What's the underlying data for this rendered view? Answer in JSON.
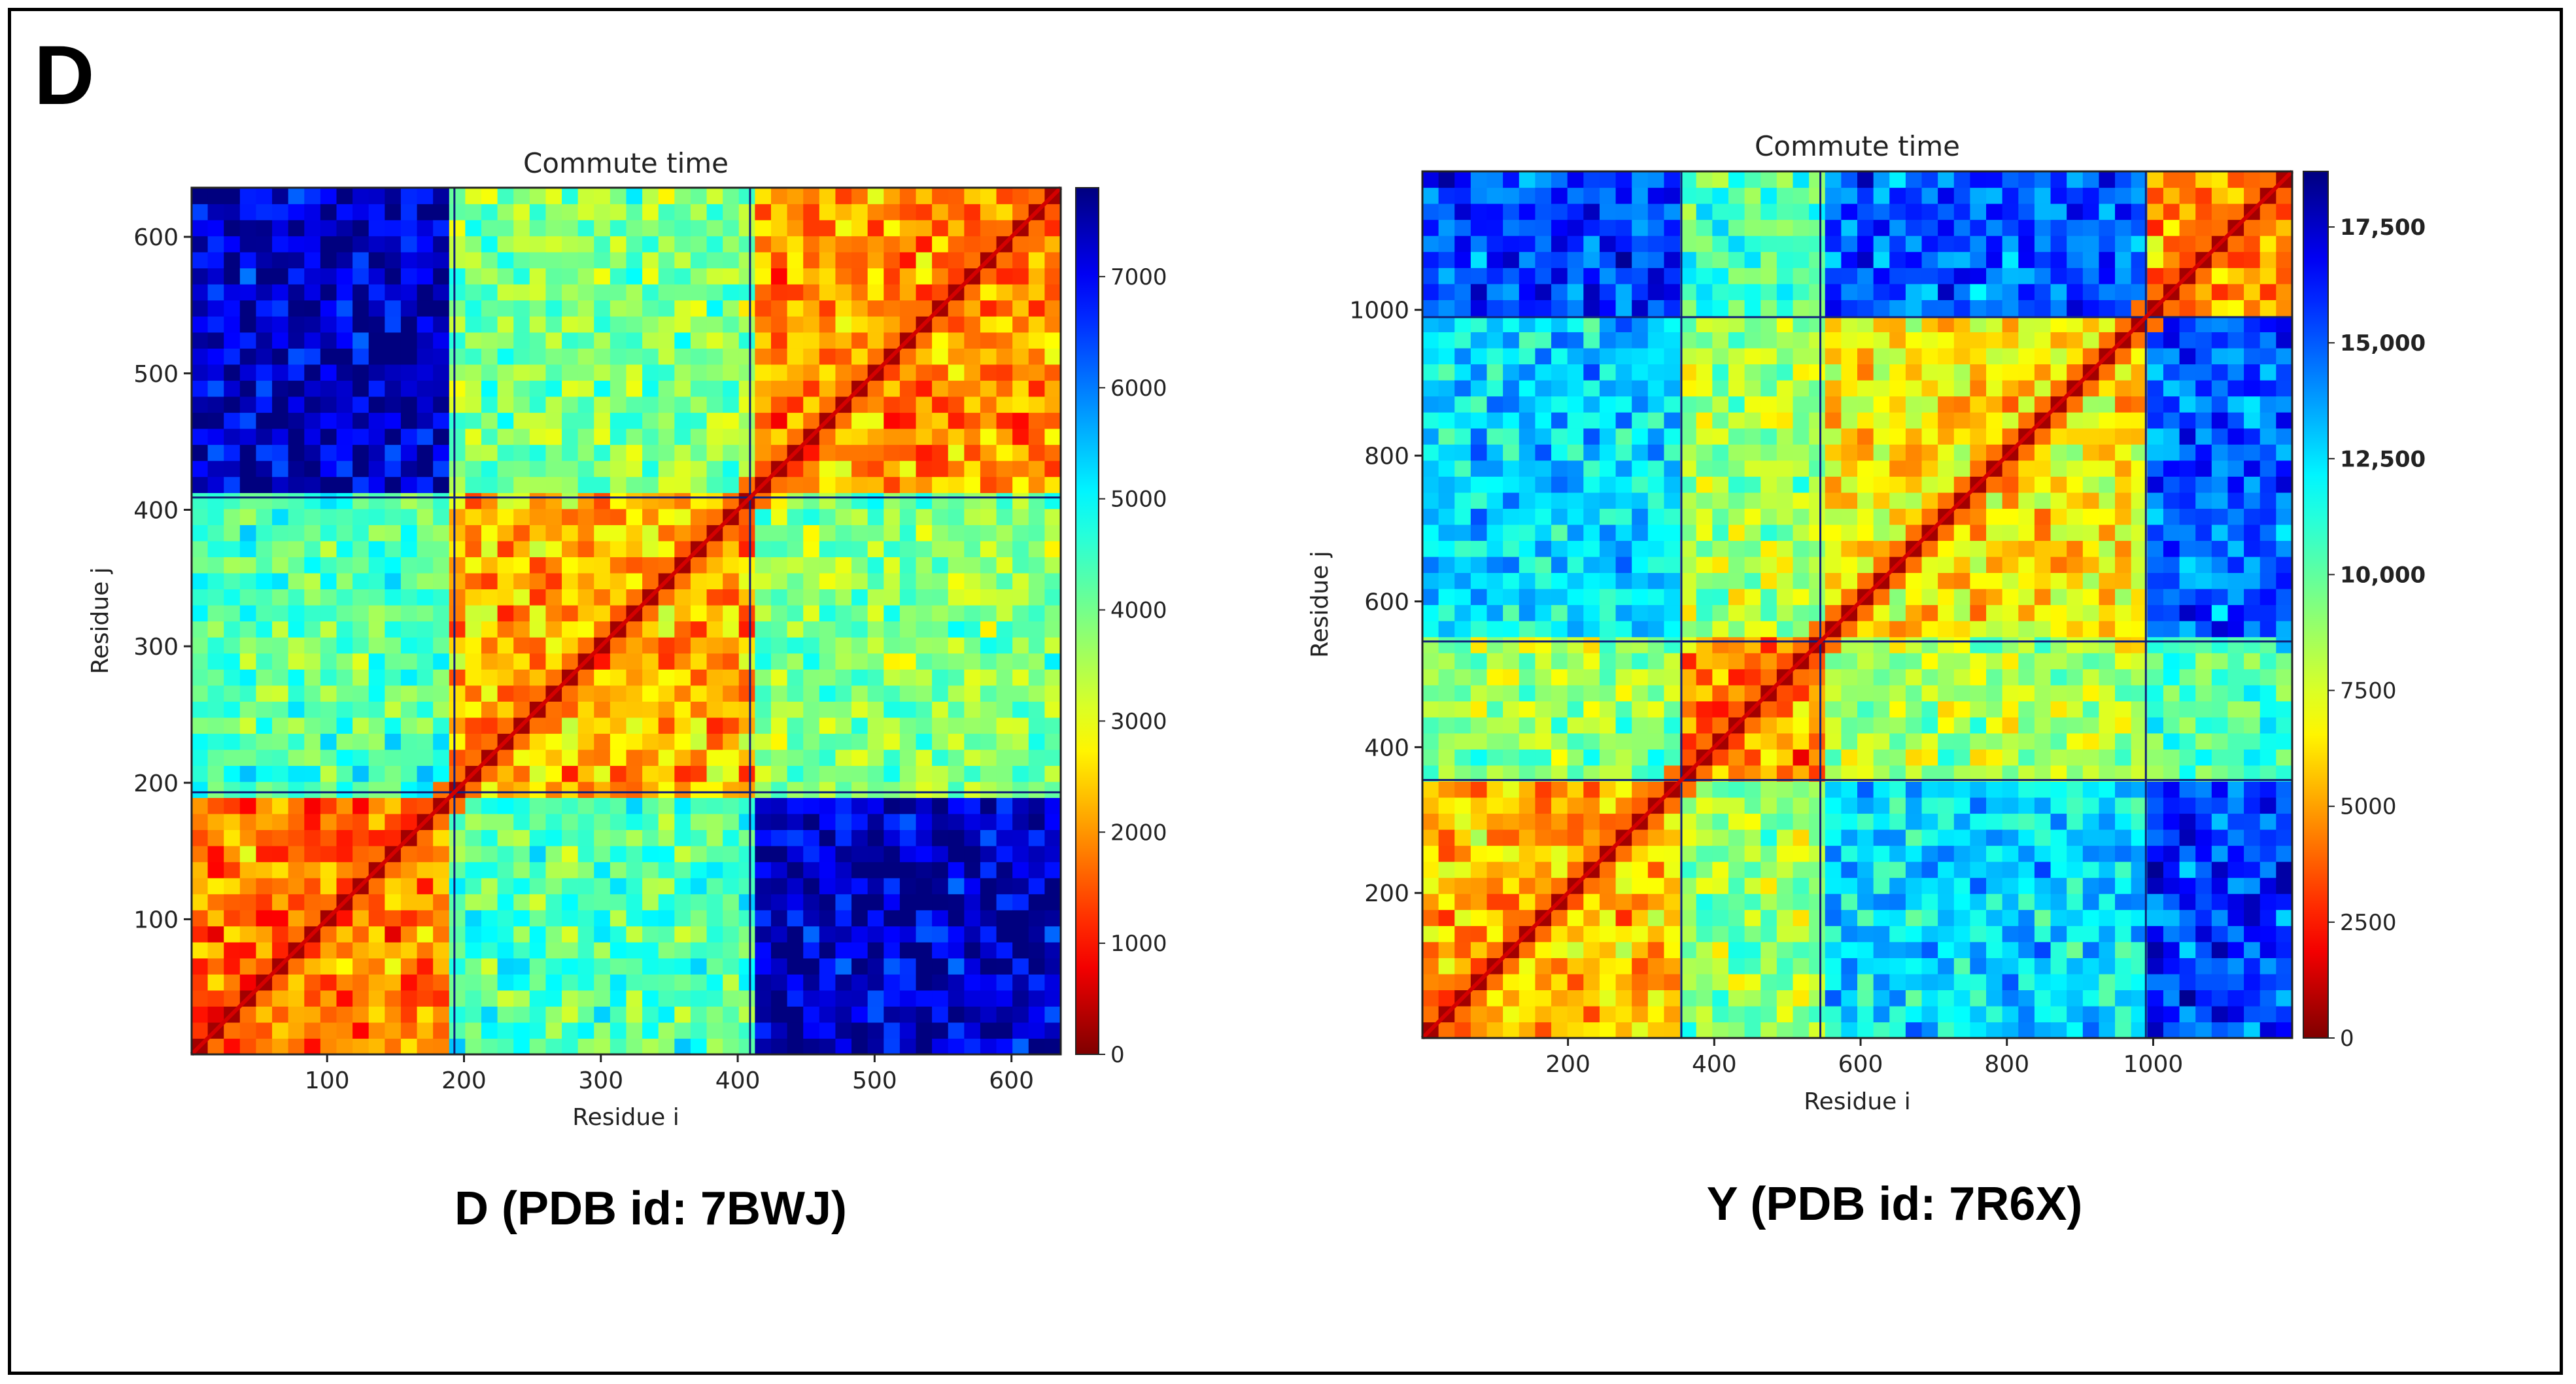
{
  "panel_label": "D",
  "colors": {
    "jet_low": "#7f0000",
    "jet_red": "#ff0000",
    "jet_yellow": "#ffff00",
    "jet_cyan": "#00ffff",
    "jet_blue": "#0000ff",
    "jet_high": "#00007f",
    "frame": "#000000"
  },
  "chart_data": [
    {
      "type": "heatmap",
      "title": "Commute time",
      "xlabel": "Residue i",
      "ylabel": "Residue j",
      "caption": "D (PDB id: 7BWJ)",
      "xlim": [
        1,
        636
      ],
      "ylim": [
        1,
        636
      ],
      "xticks": [
        100,
        200,
        300,
        400,
        500,
        600
      ],
      "yticks": [
        100,
        200,
        300,
        400,
        500,
        600
      ],
      "block_boundaries": [
        1,
        193,
        409,
        636
      ],
      "colorbar": {
        "min": 0,
        "max": 7800,
        "reversed": false,
        "ticks": [
          0,
          1000,
          2000,
          3000,
          4000,
          5000,
          6000,
          7000
        ],
        "tick_labels": [
          "0",
          "1000",
          "2000",
          "3000",
          "4000",
          "5000",
          "6000",
          "7000"
        ]
      },
      "colormap": "jet",
      "block_values": [
        [
          1800,
          4300,
          7300
        ],
        [
          4300,
          2200,
          3900
        ],
        [
          7300,
          3900,
          2000
        ]
      ]
    },
    {
      "type": "heatmap",
      "title": "Commute time",
      "xlabel": "Residue i",
      "ylabel": "Residue j",
      "caption": "Y (PDB id: 7R6X)",
      "xlim": [
        1,
        1190
      ],
      "ylim": [
        1,
        1190
      ],
      "xticks": [
        200,
        400,
        600,
        800,
        1000
      ],
      "yticks": [
        200,
        400,
        600,
        800,
        1000
      ],
      "block_boundaries": [
        1,
        355,
        545,
        990,
        1190
      ],
      "colorbar": {
        "min": 0,
        "max": 18700,
        "reversed": true,
        "ticks": [
          0,
          2500,
          5000,
          7500,
          10000,
          12500,
          15000,
          17500
        ],
        "tick_labels": [
          "0",
          "2500",
          "5000",
          "7500",
          "10,000",
          "12,500",
          "15,000",
          "17,500"
        ]
      },
      "colormap": "jet_r",
      "block_values": [
        [
          5500,
          9000,
          12500,
          15500
        ],
        [
          9000,
          4500,
          8500,
          10500
        ],
        [
          12500,
          8500,
          6500,
          15000
        ],
        [
          15500,
          10500,
          15000,
          5000
        ]
      ]
    }
  ]
}
